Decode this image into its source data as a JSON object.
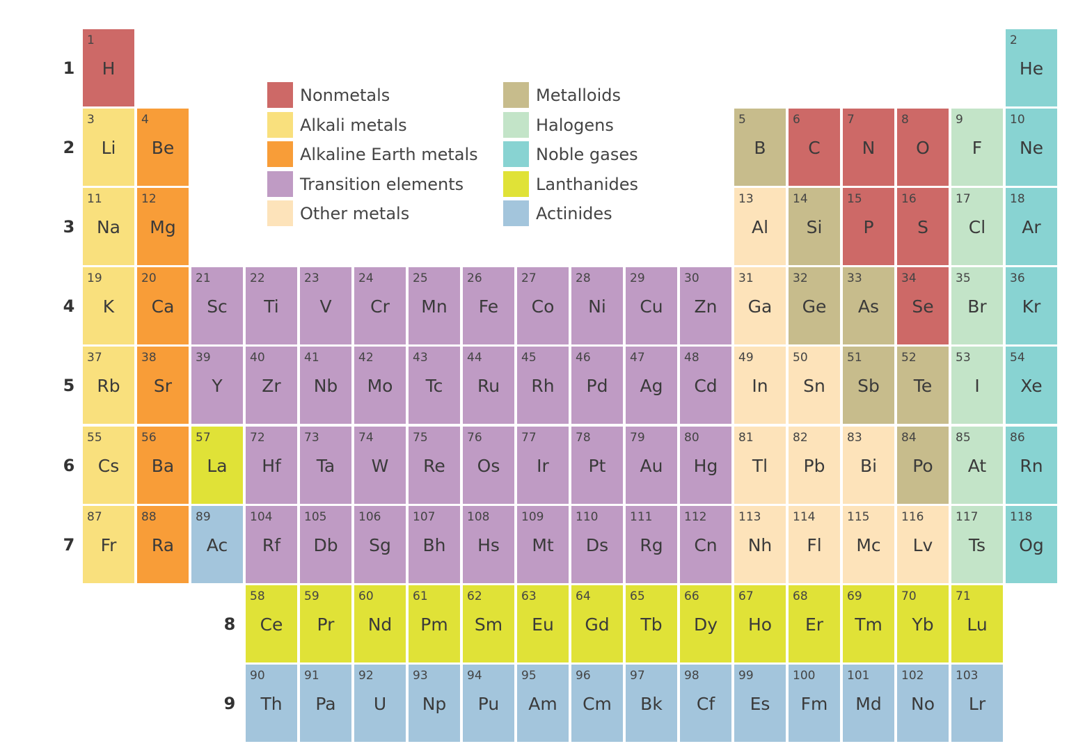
{
  "colors": {
    "nonmetal": "#cd6967",
    "alkali": "#f9e07d",
    "alkaline": "#f89d38",
    "transition": "#bf9bc4",
    "other": "#fde3ba",
    "metalloid": "#c7bc8c",
    "halogen": "#c3e4c8",
    "noble": "#88d3d2",
    "lanthanide": "#e0e237",
    "actinide": "#a3c5dc"
  },
  "legend": [
    {
      "key": "nonmetal",
      "label": "Nonmetals"
    },
    {
      "key": "alkali",
      "label": "Alkali metals"
    },
    {
      "key": "alkaline",
      "label": "Alkaline Earth metals"
    },
    {
      "key": "transition",
      "label": "Transition elements"
    },
    {
      "key": "other",
      "label": "Other metals"
    },
    {
      "key": "metalloid",
      "label": "Metalloids"
    },
    {
      "key": "halogen",
      "label": "Halogens"
    },
    {
      "key": "noble",
      "label": "Noble gases"
    },
    {
      "key": "lanthanide",
      "label": "Lanthanides"
    },
    {
      "key": "actinide",
      "label": "Actinides"
    }
  ],
  "periods": [
    "1",
    "2",
    "3",
    "4",
    "5",
    "6",
    "7",
    "8",
    "9"
  ],
  "elements": [
    {
      "n": "1",
      "s": "H",
      "row": 1,
      "col": 1,
      "cat": "nonmetal"
    },
    {
      "n": "2",
      "s": "He",
      "row": 1,
      "col": 18,
      "cat": "noble"
    },
    {
      "n": "3",
      "s": "Li",
      "row": 2,
      "col": 1,
      "cat": "alkali"
    },
    {
      "n": "4",
      "s": "Be",
      "row": 2,
      "col": 2,
      "cat": "alkaline"
    },
    {
      "n": "5",
      "s": "B",
      "row": 2,
      "col": 13,
      "cat": "metalloid"
    },
    {
      "n": "6",
      "s": "C",
      "row": 2,
      "col": 14,
      "cat": "nonmetal"
    },
    {
      "n": "7",
      "s": "N",
      "row": 2,
      "col": 15,
      "cat": "nonmetal"
    },
    {
      "n": "8",
      "s": "O",
      "row": 2,
      "col": 16,
      "cat": "nonmetal"
    },
    {
      "n": "9",
      "s": "F",
      "row": 2,
      "col": 17,
      "cat": "halogen"
    },
    {
      "n": "10",
      "s": "Ne",
      "row": 2,
      "col": 18,
      "cat": "noble"
    },
    {
      "n": "11",
      "s": "Na",
      "row": 3,
      "col": 1,
      "cat": "alkali"
    },
    {
      "n": "12",
      "s": "Mg",
      "row": 3,
      "col": 2,
      "cat": "alkaline"
    },
    {
      "n": "13",
      "s": "Al",
      "row": 3,
      "col": 13,
      "cat": "other"
    },
    {
      "n": "14",
      "s": "Si",
      "row": 3,
      "col": 14,
      "cat": "metalloid"
    },
    {
      "n": "15",
      "s": "P",
      "row": 3,
      "col": 15,
      "cat": "nonmetal"
    },
    {
      "n": "16",
      "s": "S",
      "row": 3,
      "col": 16,
      "cat": "nonmetal"
    },
    {
      "n": "17",
      "s": "Cl",
      "row": 3,
      "col": 17,
      "cat": "halogen"
    },
    {
      "n": "18",
      "s": "Ar",
      "row": 3,
      "col": 18,
      "cat": "noble"
    },
    {
      "n": "19",
      "s": "K",
      "row": 4,
      "col": 1,
      "cat": "alkali"
    },
    {
      "n": "20",
      "s": "Ca",
      "row": 4,
      "col": 2,
      "cat": "alkaline"
    },
    {
      "n": "21",
      "s": "Sc",
      "row": 4,
      "col": 3,
      "cat": "transition"
    },
    {
      "n": "22",
      "s": "Ti",
      "row": 4,
      "col": 4,
      "cat": "transition"
    },
    {
      "n": "23",
      "s": "V",
      "row": 4,
      "col": 5,
      "cat": "transition"
    },
    {
      "n": "24",
      "s": "Cr",
      "row": 4,
      "col": 6,
      "cat": "transition"
    },
    {
      "n": "25",
      "s": "Mn",
      "row": 4,
      "col": 7,
      "cat": "transition"
    },
    {
      "n": "26",
      "s": "Fe",
      "row": 4,
      "col": 8,
      "cat": "transition"
    },
    {
      "n": "27",
      "s": "Co",
      "row": 4,
      "col": 9,
      "cat": "transition"
    },
    {
      "n": "28",
      "s": "Ni",
      "row": 4,
      "col": 10,
      "cat": "transition"
    },
    {
      "n": "29",
      "s": "Cu",
      "row": 4,
      "col": 11,
      "cat": "transition"
    },
    {
      "n": "30",
      "s": "Zn",
      "row": 4,
      "col": 12,
      "cat": "transition"
    },
    {
      "n": "31",
      "s": "Ga",
      "row": 4,
      "col": 13,
      "cat": "other"
    },
    {
      "n": "32",
      "s": "Ge",
      "row": 4,
      "col": 14,
      "cat": "metalloid"
    },
    {
      "n": "33",
      "s": "As",
      "row": 4,
      "col": 15,
      "cat": "metalloid"
    },
    {
      "n": "34",
      "s": "Se",
      "row": 4,
      "col": 16,
      "cat": "nonmetal"
    },
    {
      "n": "35",
      "s": "Br",
      "row": 4,
      "col": 17,
      "cat": "halogen"
    },
    {
      "n": "36",
      "s": "Kr",
      "row": 4,
      "col": 18,
      "cat": "noble"
    },
    {
      "n": "37",
      "s": "Rb",
      "row": 5,
      "col": 1,
      "cat": "alkali"
    },
    {
      "n": "38",
      "s": "Sr",
      "row": 5,
      "col": 2,
      "cat": "alkaline"
    },
    {
      "n": "39",
      "s": "Y",
      "row": 5,
      "col": 3,
      "cat": "transition"
    },
    {
      "n": "40",
      "s": "Zr",
      "row": 5,
      "col": 4,
      "cat": "transition"
    },
    {
      "n": "41",
      "s": "Nb",
      "row": 5,
      "col": 5,
      "cat": "transition"
    },
    {
      "n": "42",
      "s": "Mo",
      "row": 5,
      "col": 6,
      "cat": "transition"
    },
    {
      "n": "43",
      "s": "Tc",
      "row": 5,
      "col": 7,
      "cat": "transition"
    },
    {
      "n": "44",
      "s": "Ru",
      "row": 5,
      "col": 8,
      "cat": "transition"
    },
    {
      "n": "45",
      "s": "Rh",
      "row": 5,
      "col": 9,
      "cat": "transition"
    },
    {
      "n": "46",
      "s": "Pd",
      "row": 5,
      "col": 10,
      "cat": "transition"
    },
    {
      "n": "47",
      "s": "Ag",
      "row": 5,
      "col": 11,
      "cat": "transition"
    },
    {
      "n": "48",
      "s": "Cd",
      "row": 5,
      "col": 12,
      "cat": "transition"
    },
    {
      "n": "49",
      "s": "In",
      "row": 5,
      "col": 13,
      "cat": "other"
    },
    {
      "n": "50",
      "s": "Sn",
      "row": 5,
      "col": 14,
      "cat": "other"
    },
    {
      "n": "51",
      "s": "Sb",
      "row": 5,
      "col": 15,
      "cat": "metalloid"
    },
    {
      "n": "52",
      "s": "Te",
      "row": 5,
      "col": 16,
      "cat": "metalloid"
    },
    {
      "n": "53",
      "s": "I",
      "row": 5,
      "col": 17,
      "cat": "halogen"
    },
    {
      "n": "54",
      "s": "Xe",
      "row": 5,
      "col": 18,
      "cat": "noble"
    },
    {
      "n": "55",
      "s": "Cs",
      "row": 6,
      "col": 1,
      "cat": "alkali"
    },
    {
      "n": "56",
      "s": "Ba",
      "row": 6,
      "col": 2,
      "cat": "alkaline"
    },
    {
      "n": "57",
      "s": "La",
      "row": 6,
      "col": 3,
      "cat": "lanthanide"
    },
    {
      "n": "72",
      "s": "Hf",
      "row": 6,
      "col": 4,
      "cat": "transition"
    },
    {
      "n": "73",
      "s": "Ta",
      "row": 6,
      "col": 5,
      "cat": "transition"
    },
    {
      "n": "74",
      "s": "W",
      "row": 6,
      "col": 6,
      "cat": "transition"
    },
    {
      "n": "75",
      "s": "Re",
      "row": 6,
      "col": 7,
      "cat": "transition"
    },
    {
      "n": "76",
      "s": "Os",
      "row": 6,
      "col": 8,
      "cat": "transition"
    },
    {
      "n": "77",
      "s": "Ir",
      "row": 6,
      "col": 9,
      "cat": "transition"
    },
    {
      "n": "78",
      "s": "Pt",
      "row": 6,
      "col": 10,
      "cat": "transition"
    },
    {
      "n": "79",
      "s": "Au",
      "row": 6,
      "col": 11,
      "cat": "transition"
    },
    {
      "n": "80",
      "s": "Hg",
      "row": 6,
      "col": 12,
      "cat": "transition"
    },
    {
      "n": "81",
      "s": "Tl",
      "row": 6,
      "col": 13,
      "cat": "other"
    },
    {
      "n": "82",
      "s": "Pb",
      "row": 6,
      "col": 14,
      "cat": "other"
    },
    {
      "n": "83",
      "s": "Bi",
      "row": 6,
      "col": 15,
      "cat": "other"
    },
    {
      "n": "84",
      "s": "Po",
      "row": 6,
      "col": 16,
      "cat": "metalloid"
    },
    {
      "n": "85",
      "s": "At",
      "row": 6,
      "col": 17,
      "cat": "halogen"
    },
    {
      "n": "86",
      "s": "Rn",
      "row": 6,
      "col": 18,
      "cat": "noble"
    },
    {
      "n": "87",
      "s": "Fr",
      "row": 7,
      "col": 1,
      "cat": "alkali"
    },
    {
      "n": "88",
      "s": "Ra",
      "row": 7,
      "col": 2,
      "cat": "alkaline"
    },
    {
      "n": "89",
      "s": "Ac",
      "row": 7,
      "col": 3,
      "cat": "actinide"
    },
    {
      "n": "104",
      "s": "Rf",
      "row": 7,
      "col": 4,
      "cat": "transition"
    },
    {
      "n": "105",
      "s": "Db",
      "row": 7,
      "col": 5,
      "cat": "transition"
    },
    {
      "n": "106",
      "s": "Sg",
      "row": 7,
      "col": 6,
      "cat": "transition"
    },
    {
      "n": "107",
      "s": "Bh",
      "row": 7,
      "col": 7,
      "cat": "transition"
    },
    {
      "n": "108",
      "s": "Hs",
      "row": 7,
      "col": 8,
      "cat": "transition"
    },
    {
      "n": "109",
      "s": "Mt",
      "row": 7,
      "col": 9,
      "cat": "transition"
    },
    {
      "n": "110",
      "s": "Ds",
      "row": 7,
      "col": 10,
      "cat": "transition"
    },
    {
      "n": "111",
      "s": "Rg",
      "row": 7,
      "col": 11,
      "cat": "transition"
    },
    {
      "n": "112",
      "s": "Cn",
      "row": 7,
      "col": 12,
      "cat": "transition"
    },
    {
      "n": "113",
      "s": "Nh",
      "row": 7,
      "col": 13,
      "cat": "other"
    },
    {
      "n": "114",
      "s": "Fl",
      "row": 7,
      "col": 14,
      "cat": "other"
    },
    {
      "n": "115",
      "s": "Mc",
      "row": 7,
      "col": 15,
      "cat": "other"
    },
    {
      "n": "116",
      "s": "Lv",
      "row": 7,
      "col": 16,
      "cat": "other"
    },
    {
      "n": "117",
      "s": "Ts",
      "row": 7,
      "col": 17,
      "cat": "halogen"
    },
    {
      "n": "118",
      "s": "Og",
      "row": 7,
      "col": 18,
      "cat": "noble"
    },
    {
      "n": "58",
      "s": "Ce",
      "row": 8,
      "col": 4,
      "cat": "lanthanide"
    },
    {
      "n": "59",
      "s": "Pr",
      "row": 8,
      "col": 5,
      "cat": "lanthanide"
    },
    {
      "n": "60",
      "s": "Nd",
      "row": 8,
      "col": 6,
      "cat": "lanthanide"
    },
    {
      "n": "61",
      "s": "Pm",
      "row": 8,
      "col": 7,
      "cat": "lanthanide"
    },
    {
      "n": "62",
      "s": "Sm",
      "row": 8,
      "col": 8,
      "cat": "lanthanide"
    },
    {
      "n": "63",
      "s": "Eu",
      "row": 8,
      "col": 9,
      "cat": "lanthanide"
    },
    {
      "n": "64",
      "s": "Gd",
      "row": 8,
      "col": 10,
      "cat": "lanthanide"
    },
    {
      "n": "65",
      "s": "Tb",
      "row": 8,
      "col": 11,
      "cat": "lanthanide"
    },
    {
      "n": "66",
      "s": "Dy",
      "row": 8,
      "col": 12,
      "cat": "lanthanide"
    },
    {
      "n": "67",
      "s": "Ho",
      "row": 8,
      "col": 13,
      "cat": "lanthanide"
    },
    {
      "n": "68",
      "s": "Er",
      "row": 8,
      "col": 14,
      "cat": "lanthanide"
    },
    {
      "n": "69",
      "s": "Tm",
      "row": 8,
      "col": 15,
      "cat": "lanthanide"
    },
    {
      "n": "70",
      "s": "Yb",
      "row": 8,
      "col": 16,
      "cat": "lanthanide"
    },
    {
      "n": "71",
      "s": "Lu",
      "row": 8,
      "col": 17,
      "cat": "lanthanide"
    },
    {
      "n": "90",
      "s": "Th",
      "row": 9,
      "col": 4,
      "cat": "actinide"
    },
    {
      "n": "91",
      "s": "Pa",
      "row": 9,
      "col": 5,
      "cat": "actinide"
    },
    {
      "n": "92",
      "s": "U",
      "row": 9,
      "col": 6,
      "cat": "actinide"
    },
    {
      "n": "93",
      "s": "Np",
      "row": 9,
      "col": 7,
      "cat": "actinide"
    },
    {
      "n": "94",
      "s": "Pu",
      "row": 9,
      "col": 8,
      "cat": "actinide"
    },
    {
      "n": "95",
      "s": "Am",
      "row": 9,
      "col": 9,
      "cat": "actinide"
    },
    {
      "n": "96",
      "s": "Cm",
      "row": 9,
      "col": 10,
      "cat": "actinide"
    },
    {
      "n": "97",
      "s": "Bk",
      "row": 9,
      "col": 11,
      "cat": "actinide"
    },
    {
      "n": "98",
      "s": "Cf",
      "row": 9,
      "col": 12,
      "cat": "actinide"
    },
    {
      "n": "99",
      "s": "Es",
      "row": 9,
      "col": 13,
      "cat": "actinide"
    },
    {
      "n": "100",
      "s": "Fm",
      "row": 9,
      "col": 14,
      "cat": "actinide"
    },
    {
      "n": "101",
      "s": "Md",
      "row": 9,
      "col": 15,
      "cat": "actinide"
    },
    {
      "n": "102",
      "s": "No",
      "row": 9,
      "col": 16,
      "cat": "actinide"
    },
    {
      "n": "103",
      "s": "Lr",
      "row": 9,
      "col": 17,
      "cat": "actinide"
    }
  ]
}
